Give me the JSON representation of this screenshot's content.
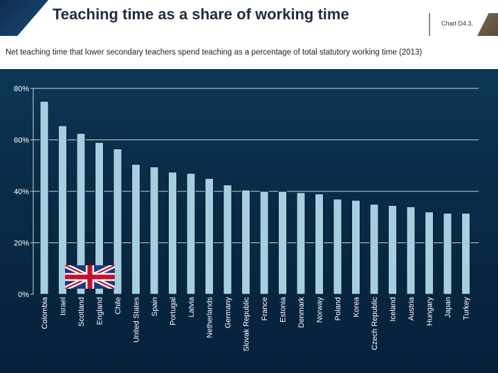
{
  "header": {
    "title": "Teaching time as a share of working time",
    "chart_id": "Chart D4.3."
  },
  "colors": {
    "bar": "#a5cfe1",
    "bar_stroke": "#0a1a28",
    "axis_text": "#ffffff",
    "grid": "#c8d6e0"
  },
  "flag_icon": "uk-flag-icon",
  "chart_data": {
    "type": "bar",
    "title": "Net teaching time that lower secondary teachers spend teaching as a percentage of total statutory working time (2013)",
    "xlabel": "",
    "ylabel": "",
    "ylim": [
      0,
      80
    ],
    "yticks": [
      0,
      20,
      40,
      60,
      80
    ],
    "ytick_labels": [
      "0%",
      "20%",
      "40%",
      "60%",
      "80%"
    ],
    "categories": [
      "Colombia",
      "Israel",
      "Scotland",
      "England",
      "Chile",
      "United States",
      "Spain",
      "Portugal",
      "Latvia",
      "Netherlands",
      "Germany",
      "Slovak Republic",
      "France",
      "Estonia",
      "Denmark",
      "Norway",
      "Poland",
      "Korea",
      "Czech Republic",
      "Iceland",
      "Austria",
      "Hungary",
      "Japan",
      "Turkey"
    ],
    "values": [
      75,
      65.5,
      62.5,
      59,
      56.5,
      50.5,
      49.5,
      47.5,
      47,
      45,
      42.5,
      40.5,
      40,
      40,
      39.5,
      39,
      37,
      36.5,
      35,
      34.5,
      34,
      32,
      31.5,
      31.5
    ]
  }
}
